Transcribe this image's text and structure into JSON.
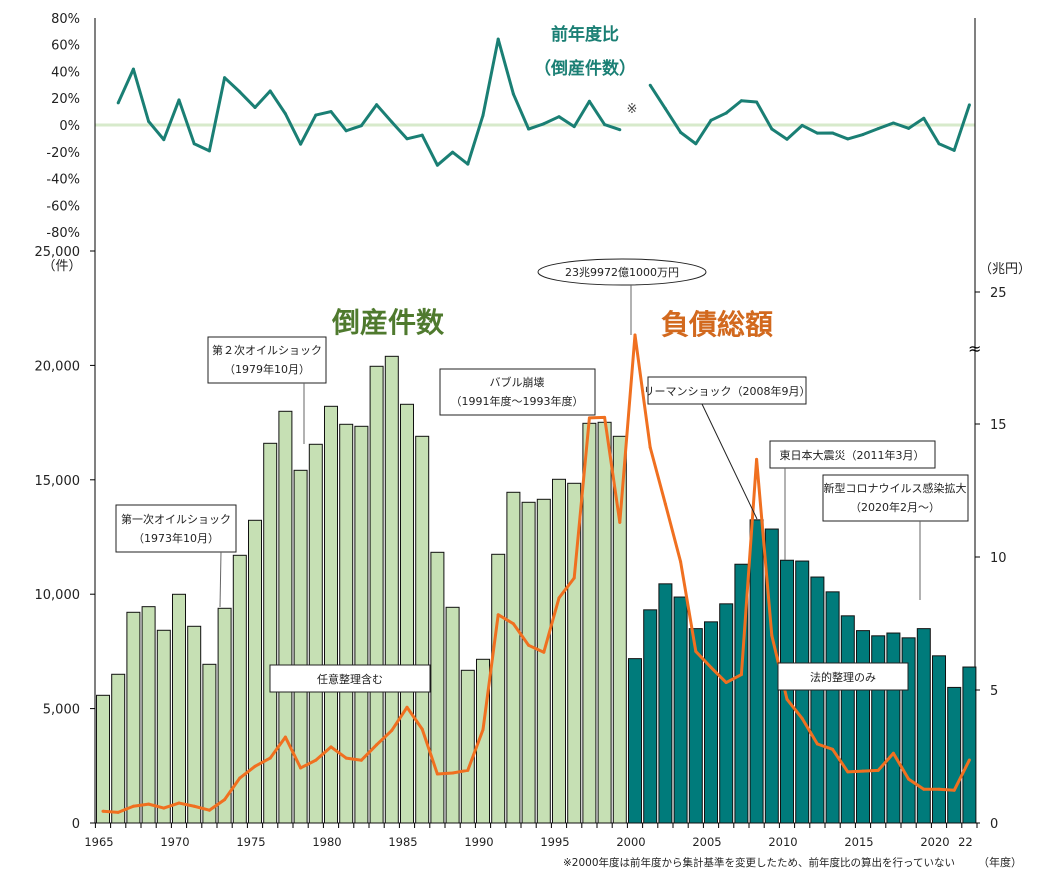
{
  "chart_data": [
    {
      "type": "line",
      "title": "前年度比",
      "subtitle": "（倒産件数）",
      "ylim": [
        -80,
        80
      ],
      "yticks": [
        "80%",
        "60%",
        "40%",
        "20%",
        "0%",
        "-20%",
        "-40%",
        "-60%",
        "-80%"
      ],
      "gap_mark": "※",
      "color": "#1a7f74",
      "years": [
        1966,
        1967,
        1968,
        1969,
        1970,
        1971,
        1972,
        1973,
        1974,
        1975,
        1976,
        1977,
        1978,
        1979,
        1980,
        1981,
        1982,
        1983,
        1984,
        1985,
        1986,
        1987,
        1988,
        1989,
        1990,
        1991,
        1992,
        1993,
        1994,
        1995,
        1996,
        1997,
        1998,
        1999,
        2000,
        2001,
        2002,
        2003,
        2004,
        2005,
        2006,
        2007,
        2008,
        2009,
        2010,
        2011,
        2012,
        2013,
        2014,
        2015,
        2016,
        2017,
        2018,
        2019,
        2020,
        2021,
        2022
      ],
      "values": [
        16.5,
        41.7,
        2.7,
        -10.9,
        18.7,
        -14.0,
        -19.3,
        35.3,
        24.7,
        13.1,
        25.4,
        8.4,
        -14.3,
        7.4,
        10.0,
        -4.3,
        -0.5,
        15.1,
        2.2,
        -10.3,
        -7.6,
        -30.0,
        -20.3,
        -29.2,
        7.2,
        64.1,
        23.1,
        -3.0,
        0.9,
        6.2,
        -1.2,
        17.7,
        0.3,
        -3.5,
        null,
        29.7,
        12.2,
        -5.5,
        -14.0,
        3.5,
        8.9,
        18.1,
        17.2,
        -3.0,
        -10.6,
        -0.3,
        -6.1,
        -6.0,
        -10.4,
        -7.1,
        -2.7,
        1.5,
        -2.5,
        5.0,
        -14.0,
        -18.9,
        15.0
      ]
    },
    {
      "type": "bar+line",
      "years": [
        1965,
        1966,
        1967,
        1968,
        1969,
        1970,
        1971,
        1972,
        1973,
        1974,
        1975,
        1976,
        1977,
        1978,
        1979,
        1980,
        1981,
        1982,
        1983,
        1984,
        1985,
        1986,
        1987,
        1988,
        1989,
        1990,
        1991,
        1992,
        1993,
        1994,
        1995,
        1996,
        1997,
        1998,
        1999,
        2000,
        2001,
        2002,
        2003,
        2004,
        2005,
        2006,
        2007,
        2008,
        2009,
        2010,
        2011,
        2012,
        2013,
        2014,
        2015,
        2016,
        2017,
        2018,
        2019,
        2020,
        2021,
        2022
      ],
      "xticks": [
        "1965",
        "1970",
        "1975",
        "1980",
        "1985",
        "1990",
        "1995",
        "2000",
        "2005",
        "2010",
        "2015",
        "2020",
        "22"
      ],
      "xlabel": "（年度）",
      "left_axis": {
        "label": "（件）",
        "ylim": [
          0,
          25000
        ],
        "ticks": [
          "0",
          "5,000",
          "10,000",
          "15,000",
          "20,000",
          "25,000"
        ]
      },
      "right_axis": {
        "label": "（兆円）",
        "ylim": [
          0,
          25
        ],
        "ticks": [
          "0",
          "5",
          "10",
          "15",
          "25"
        ],
        "broken": true
      },
      "series": [
        {
          "name": "倒産件数",
          "type": "bar",
          "color_any": "#c6e0b4",
          "color_legal": "#007b7b",
          "values": [
            5581,
            6500,
            9209,
            9455,
            8423,
            9996,
            8597,
            6936,
            9384,
            11700,
            13230,
            16595,
            17994,
            15415,
            16552,
            18212,
            17426,
            17338,
            19961,
            20397,
            18300,
            16901,
            11831,
            9427,
            6674,
            7155,
            11744,
            14454,
            14017,
            14148,
            15022,
            14847,
            17469,
            17513,
            16901,
            7184,
            9317,
            10453,
            9876,
            8495,
            8792,
            9579,
            11310,
            13250,
            12848,
            11484,
            11449,
            10750,
            10103,
            9055,
            8408,
            8181,
            8303,
            8093,
            8495,
            7307,
            5926,
            6817
          ]
        },
        {
          "name": "負債総額",
          "type": "line",
          "color": "#f07020",
          "values": [
            0.44,
            0.4,
            0.63,
            0.71,
            0.56,
            0.75,
            0.63,
            0.48,
            0.88,
            1.69,
            2.13,
            2.44,
            3.23,
            2.07,
            2.36,
            2.86,
            2.44,
            2.36,
            2.94,
            3.48,
            4.35,
            3.53,
            1.84,
            1.88,
            1.98,
            3.51,
            7.83,
            7.49,
            6.68,
            6.42,
            8.46,
            9.21,
            15.23,
            15.25,
            11.3,
            23.99,
            14.12,
            11.99,
            9.82,
            6.45,
            5.85,
            5.28,
            5.58,
            13.67,
            7.05,
            4.65,
            3.93,
            2.97,
            2.77,
            1.92,
            1.95,
            1.98,
            2.62,
            1.65,
            1.27,
            1.27,
            1.23,
            2.37
          ]
        }
      ],
      "annotations": {
        "oil1": [
          "第一次オイルショック",
          "（1973年10月）"
        ],
        "oil2": [
          "第２次オイルショック",
          "（1979年10月）"
        ],
        "voluntary": "任意整理含む",
        "bubble": [
          "バブル崩壊",
          "（1991年度～1993年度）"
        ],
        "peak": "23兆9972億1000万円",
        "lehman": "リーマンショック（2008年9月）",
        "quake": "東日本大震災（2011年3月）",
        "covid": [
          "新型コロナウイルス感染拡大",
          "（2020年2月～）"
        ],
        "legal": "法的整理のみ"
      },
      "footnote": "※2000年度は前年度から集計基準を変更したため、前年度比の算出を行っていない"
    }
  ]
}
